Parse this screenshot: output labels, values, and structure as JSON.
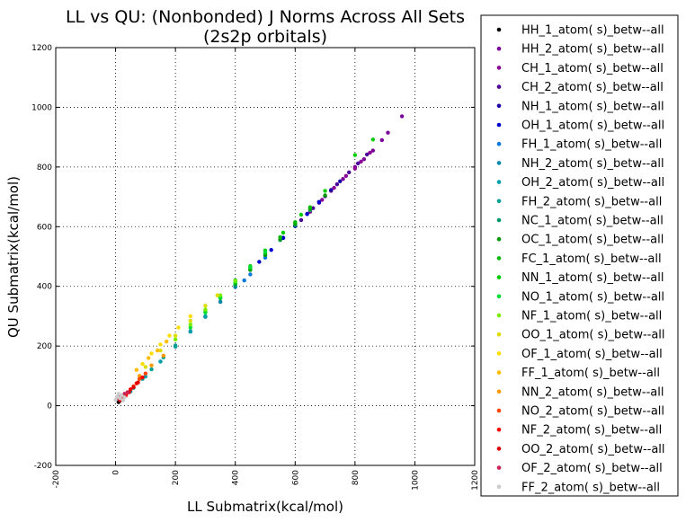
{
  "chart_data": {
    "type": "scatter",
    "title": "LL vs QU: (Nonbonded) J Norms Across All Sets",
    "subtitle": "(2s2p orbitals)",
    "xlabel": "LL Submatrix(kcal/mol)",
    "ylabel": "QU Submatrix(kcal/mol)",
    "xlim": [
      -200,
      1200
    ],
    "ylim": [
      -200,
      1200
    ],
    "xticks": [
      "-200",
      "0",
      "200",
      "400",
      "600",
      "800",
      "1000",
      "1200"
    ],
    "yticks": [
      "-200",
      "0",
      "200",
      "400",
      "600",
      "800",
      "1000",
      "1200"
    ],
    "xticks_rotated": true,
    "grid": true,
    "legend_position": "outside-right",
    "series": [
      {
        "name": "HH_1_atom( s)_betw--all",
        "color": "#000000",
        "x": [
          10,
          15,
          20,
          25,
          30
        ],
        "y": [
          12,
          17,
          22,
          27,
          32
        ]
      },
      {
        "name": "HH_2_atom( s)_betw--all",
        "color": "#7a0099",
        "x": [
          680,
          720,
          760,
          800,
          830,
          860,
          890,
          910,
          957
        ],
        "y": [
          680,
          720,
          760,
          800,
          826,
          855,
          890,
          915,
          970
        ]
      },
      {
        "name": "CH_1_atom( s)_betw--all",
        "color": "#8a0095",
        "x": [
          650,
          690,
          730,
          770,
          800,
          820,
          850
        ],
        "y": [
          650,
          690,
          730,
          770,
          795,
          818,
          848
        ]
      },
      {
        "name": "CH_2_atom( s)_betw--all",
        "color": "#4a0099",
        "x": [
          620,
          660,
          700,
          740,
          780,
          810,
          840
        ],
        "y": [
          622,
          662,
          702,
          742,
          782,
          812,
          842
        ]
      },
      {
        "name": "NH_1_atom( s)_betw--all",
        "color": "#1a00a8",
        "x": [
          560,
          600,
          640,
          680,
          720,
          750
        ],
        "y": [
          563,
          603,
          643,
          683,
          723,
          752
        ]
      },
      {
        "name": "OH_1_atom( s)_betw--all",
        "color": "#0000cc",
        "x": [
          480,
          520,
          560,
          600,
          640,
          680
        ],
        "y": [
          482,
          522,
          562,
          602,
          642,
          682
        ]
      },
      {
        "name": "FH_1_atom( s)_betw--all",
        "color": "#0077dd",
        "x": [
          300,
          350,
          400,
          430,
          450,
          500
        ],
        "y": [
          298,
          348,
          398,
          420,
          440,
          496
        ]
      },
      {
        "name": "NH_2_atom( s)_betw--all",
        "color": "#0088aa",
        "x": [
          150,
          200,
          250,
          300,
          350,
          400
        ],
        "y": [
          148,
          198,
          248,
          298,
          348,
          398
        ]
      },
      {
        "name": "OH_2_atom( s)_betw--all",
        "color": "#00a0aa",
        "x": [
          50,
          100,
          150,
          200,
          250,
          300
        ],
        "y": [
          48,
          98,
          148,
          198,
          250,
          300
        ]
      },
      {
        "name": "FH_2_atom( s)_betw--all",
        "color": "#00a090",
        "x": [
          30,
          60,
          90,
          120,
          160,
          200
        ],
        "y": [
          30,
          60,
          90,
          122,
          162,
          202
        ]
      },
      {
        "name": "NC_1_atom( s)_betw--all",
        "color": "#009966",
        "x": [
          400,
          450,
          500,
          550,
          600,
          650
        ],
        "y": [
          405,
          455,
          505,
          555,
          605,
          655
        ]
      },
      {
        "name": "OC_1_atom( s)_betw--all",
        "color": "#009900",
        "x": [
          450,
          500,
          550,
          600,
          650,
          700
        ],
        "y": [
          455,
          505,
          558,
          610,
          660,
          705
        ]
      },
      {
        "name": "FC_1_atom( s)_betw--all",
        "color": "#00bb00",
        "x": [
          350,
          400,
          450,
          500,
          550,
          600,
          650
        ],
        "y": [
          360,
          410,
          460,
          512,
          565,
          615,
          665
        ]
      },
      {
        "name": "NN_1_atom( s)_betw--all",
        "color": "#00cc00",
        "x": [
          300,
          350,
          400,
          450,
          500,
          560,
          620,
          700,
          800,
          860
        ],
        "y": [
          315,
          365,
          420,
          468,
          520,
          580,
          640,
          720,
          840,
          892
        ]
      },
      {
        "name": "NO_1_atom( s)_betw--all",
        "color": "#00dd33",
        "x": [
          250,
          300,
          350,
          400,
          450,
          500
        ],
        "y": [
          262,
          312,
          362,
          415,
          465,
          515
        ]
      },
      {
        "name": "NF_1_atom( s)_betw--all",
        "color": "#77ee00",
        "x": [
          200,
          250,
          300,
          350,
          400
        ],
        "y": [
          222,
          272,
          322,
          370,
          418
        ]
      },
      {
        "name": "OO_1_atom( s)_betw--all",
        "color": "#dddd00",
        "x": [
          100,
          150,
          200,
          250,
          300,
          340
        ],
        "y": [
          130,
          185,
          235,
          285,
          335,
          370
        ]
      },
      {
        "name": "OF_1_atom( s)_betw--all",
        "color": "#ffdd00",
        "x": [
          90,
          120,
          150,
          180,
          210,
          250
        ],
        "y": [
          140,
          175,
          205,
          235,
          262,
          300
        ]
      },
      {
        "name": "FF_1_atom( s)_betw--all",
        "color": "#ffbb00",
        "x": [
          70,
          110,
          140,
          170
        ],
        "y": [
          120,
          160,
          185,
          215
        ]
      },
      {
        "name": "NN_2_atom( s)_betw--all",
        "color": "#ff9900",
        "x": [
          80,
          120,
          160
        ],
        "y": [
          100,
          135,
          168
        ]
      },
      {
        "name": "NO_2_atom( s)_betw--all",
        "color": "#ff4400",
        "x": [
          40,
          60,
          80,
          100
        ],
        "y": [
          45,
          65,
          90,
          108
        ]
      },
      {
        "name": "NF_2_atom( s)_betw--all",
        "color": "#ff0000",
        "x": [
          20,
          35,
          50,
          70,
          90
        ],
        "y": [
          20,
          35,
          55,
          75,
          95
        ]
      },
      {
        "name": "OO_2_atom( s)_betw--all",
        "color": "#dd0000",
        "x": [
          15,
          25,
          45,
          60,
          75
        ],
        "y": [
          18,
          28,
          45,
          62,
          78
        ]
      },
      {
        "name": "OF_2_atom( s)_betw--all",
        "color": "#cc2255",
        "x": [
          5,
          10,
          20,
          30,
          40
        ],
        "y": [
          25,
          30,
          35,
          40,
          45
        ]
      },
      {
        "name": "FF_2_atom( s)_betw--all",
        "color": "#cccccc",
        "x": [
          0,
          5,
          10,
          15,
          20,
          25,
          30
        ],
        "y": [
          20,
          30,
          40,
          25,
          35,
          18,
          28
        ]
      }
    ]
  }
}
